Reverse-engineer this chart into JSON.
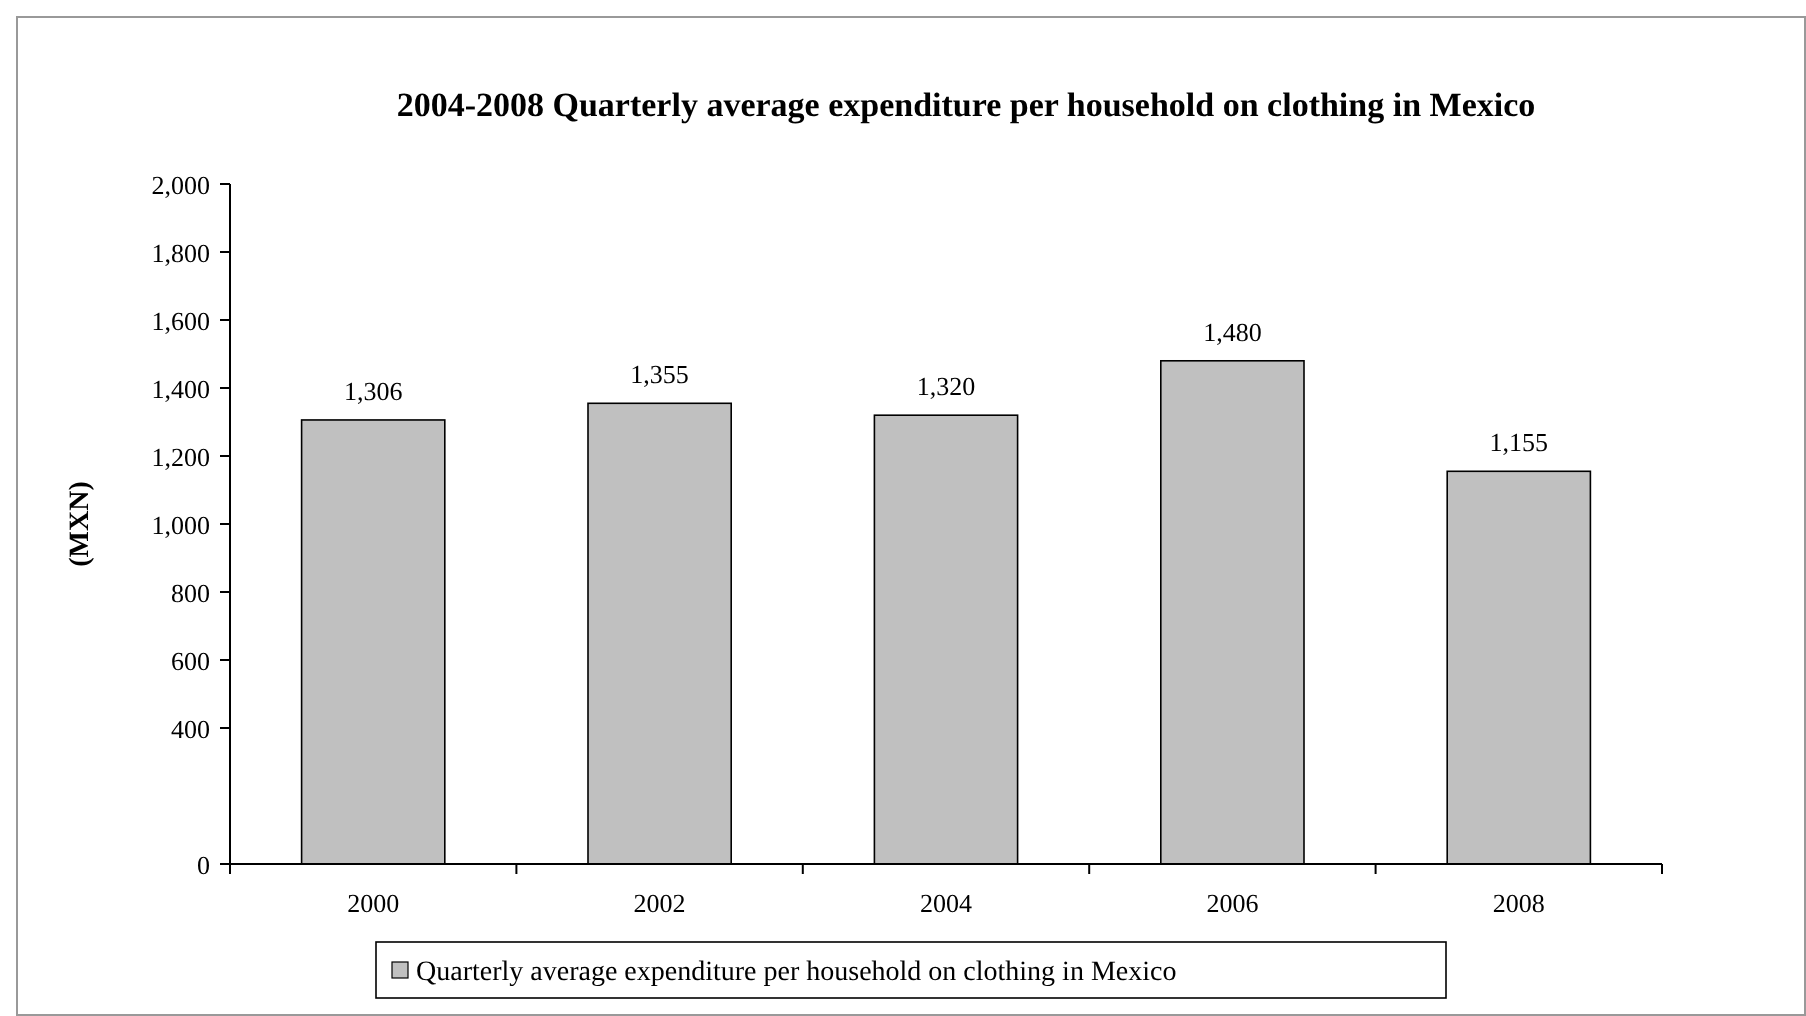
{
  "chart_data": {
    "type": "bar",
    "title": "2004-2008 Quarterly average expenditure per household on clothing in Mexico",
    "ylabel": "(MXN)",
    "categories": [
      "2000",
      "2002",
      "2004",
      "2006",
      "2008"
    ],
    "series": [
      {
        "name": "Quarterly average expenditure per household on clothing in Mexico",
        "color": "#c0c0c0",
        "values": [
          1306,
          1355,
          1320,
          1480,
          1155
        ],
        "value_labels": [
          "1,306",
          "1,355",
          "1,320",
          "1,480",
          "1,155"
        ]
      }
    ],
    "ylim": [
      0,
      2000
    ],
    "yticks": [
      0,
      400,
      600,
      800,
      {
        "value": 1000,
        "label": "1,000"
      },
      {
        "value": 1200,
        "label": "1,200"
      },
      {
        "value": 1400,
        "label": "1,400"
      },
      {
        "value": 1600,
        "label": "1,600"
      },
      {
        "value": 1800,
        "label": "1,800"
      },
      {
        "value": 2000,
        "label": "2,000"
      }
    ],
    "legend": "bottom",
    "grid": false
  }
}
